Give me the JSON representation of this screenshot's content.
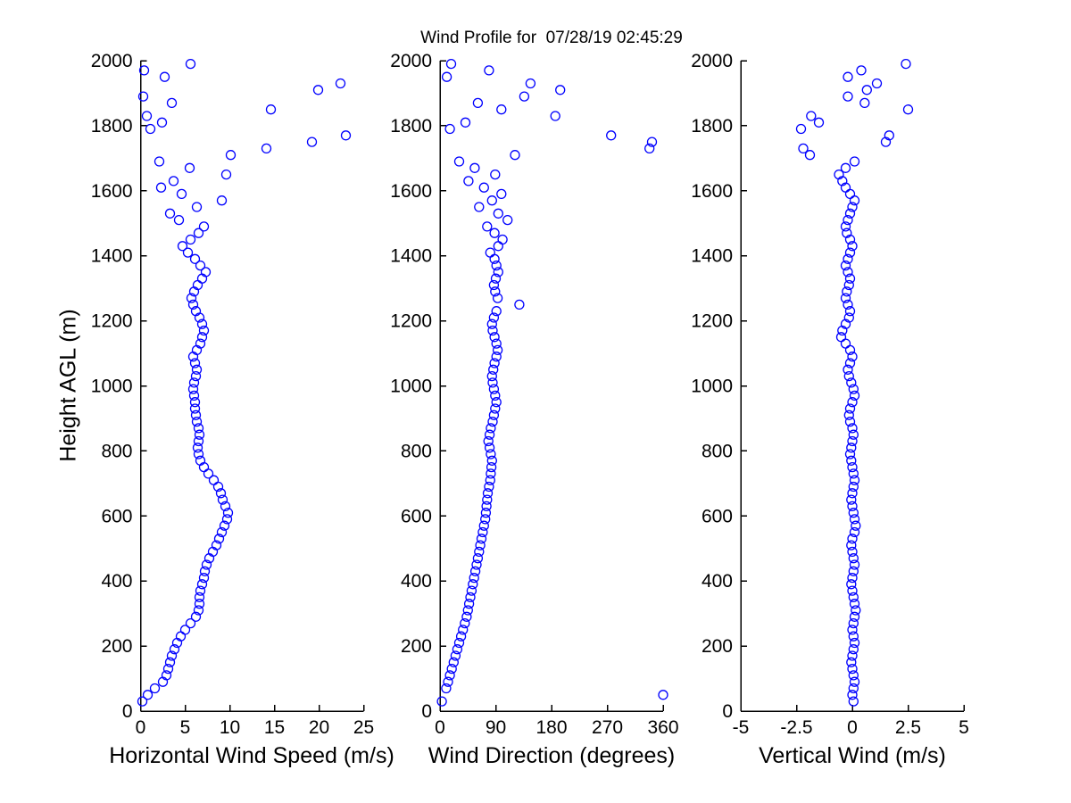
{
  "figure": {
    "title": "Wind Profile for  07/28/19 02:45:29",
    "background_color": "#ffffff"
  },
  "chart_data": {
    "type": "scatter",
    "title": "Wind Profile for  07/28/19 02:45:29",
    "grid": false,
    "legend": null,
    "axis_color": "#000000",
    "marker": {
      "shape": "open-circle",
      "color": "#0000ff",
      "radius_px": 5
    },
    "yaxis": {
      "label": "Height AGL (m)",
      "lim": [
        0,
        2000
      ],
      "ticks": [
        0,
        200,
        400,
        600,
        800,
        1000,
        1200,
        1400,
        1600,
        1800,
        2000
      ]
    },
    "heights_m": [
      30,
      50,
      70,
      90,
      110,
      130,
      150,
      170,
      190,
      210,
      230,
      250,
      270,
      290,
      310,
      330,
      350,
      370,
      390,
      410,
      430,
      450,
      470,
      490,
      510,
      530,
      550,
      570,
      590,
      610,
      630,
      650,
      670,
      690,
      710,
      730,
      750,
      770,
      790,
      810,
      830,
      850,
      870,
      890,
      910,
      930,
      950,
      970,
      990,
      1010,
      1030,
      1050,
      1070,
      1090,
      1110,
      1130,
      1150,
      1170,
      1190,
      1210,
      1230,
      1250,
      1270,
      1290,
      1310,
      1330,
      1350,
      1370,
      1390,
      1410,
      1430,
      1450,
      1470,
      1490,
      1510,
      1530,
      1550,
      1570,
      1590,
      1610,
      1630,
      1650,
      1670,
      1690,
      1710,
      1730,
      1750,
      1770,
      1790,
      1810,
      1830,
      1850,
      1870,
      1890,
      1910,
      1930,
      1950,
      1970,
      1990
    ],
    "subplots": [
      {
        "name": "horizontal-wind-speed",
        "xlabel": "Horizontal Wind Speed (m/s)",
        "xlim": [
          0,
          25
        ],
        "xticks": [
          0,
          5,
          10,
          15,
          20,
          25
        ],
        "values": [
          0.2,
          0.8,
          1.6,
          2.5,
          2.9,
          3.1,
          3.3,
          3.5,
          3.8,
          4.1,
          4.5,
          5.0,
          5.6,
          6.2,
          6.5,
          6.6,
          6.6,
          6.7,
          6.9,
          7.1,
          7.2,
          7.4,
          7.7,
          8.1,
          8.5,
          8.8,
          9.1,
          9.4,
          9.7,
          9.8,
          9.5,
          9.2,
          9.0,
          8.7,
          8.2,
          7.6,
          7.1,
          6.7,
          6.5,
          6.4,
          6.5,
          6.6,
          6.5,
          6.3,
          6.2,
          6.1,
          6.1,
          6.0,
          5.9,
          6.0,
          6.2,
          6.3,
          6.1,
          5.9,
          6.3,
          6.7,
          6.9,
          7.1,
          6.9,
          6.6,
          6.2,
          5.9,
          5.7,
          6.0,
          6.4,
          6.9,
          7.3,
          6.7,
          6.1,
          5.3,
          4.7,
          5.6,
          6.5,
          7.1,
          4.3,
          3.3,
          6.3,
          9.1,
          4.6,
          2.3,
          3.7,
          9.6,
          5.5,
          2.1,
          10.1,
          14.1,
          19.2,
          23.0,
          1.1,
          2.4,
          0.7,
          14.6,
          3.5,
          0.3,
          19.9,
          22.4,
          2.7,
          0.4,
          5.6
        ]
      },
      {
        "name": "wind-direction",
        "xlabel": "Wind Direction (degrees)",
        "xlim": [
          0,
          360
        ],
        "xticks": [
          0,
          90,
          180,
          270,
          360
        ],
        "values": [
          3,
          360,
          10,
          13,
          16,
          19,
          22,
          25,
          28,
          31,
          34,
          37,
          40,
          43,
          45,
          47,
          49,
          51,
          53,
          55,
          57,
          59,
          61,
          63,
          65,
          67,
          69,
          71,
          73,
          74,
          75,
          76,
          77,
          79,
          81,
          82,
          83,
          84,
          82,
          80,
          78,
          80,
          82,
          85,
          87,
          89,
          91,
          89,
          87,
          85,
          84,
          86,
          88,
          91,
          93,
          91,
          88,
          85,
          84,
          87,
          91,
          128,
          93,
          89,
          87,
          90,
          94,
          91,
          88,
          81,
          94,
          101,
          88,
          76,
          109,
          94,
          63,
          84,
          99,
          71,
          46,
          89,
          56,
          31,
          121,
          338,
          342,
          276,
          16,
          41,
          186,
          99,
          61,
          136,
          194,
          146,
          11,
          79,
          18
        ]
      },
      {
        "name": "vertical-wind",
        "xlabel": "Vertical Wind (m/s)",
        "xlim": [
          -5,
          5
        ],
        "xticks": [
          -5,
          -2.5,
          0,
          2.5,
          5
        ],
        "values": [
          0.05,
          0.0,
          0.05,
          0.1,
          0.05,
          0.0,
          -0.05,
          0.0,
          0.05,
          0.1,
          0.05,
          0.0,
          0.05,
          0.1,
          0.15,
          0.1,
          0.05,
          0.0,
          -0.05,
          0.0,
          0.05,
          0.1,
          0.05,
          0.0,
          -0.05,
          0.0,
          0.1,
          0.15,
          0.1,
          0.05,
          0.0,
          -0.05,
          0.0,
          0.05,
          0.1,
          0.05,
          0.0,
          -0.05,
          -0.1,
          -0.05,
          0.0,
          0.05,
          0.0,
          -0.1,
          -0.15,
          -0.1,
          0.0,
          0.1,
          0.05,
          -0.05,
          -0.15,
          -0.2,
          -0.1,
          0.0,
          -0.1,
          -0.3,
          -0.5,
          -0.45,
          -0.3,
          -0.15,
          -0.1,
          -0.2,
          -0.3,
          -0.25,
          -0.15,
          -0.1,
          -0.2,
          -0.3,
          -0.2,
          -0.1,
          0.0,
          -0.1,
          -0.25,
          -0.3,
          -0.2,
          -0.1,
          0.0,
          0.1,
          -0.1,
          -0.3,
          -0.45,
          -0.6,
          -0.3,
          0.1,
          -1.9,
          -2.2,
          1.5,
          1.65,
          -2.3,
          -1.5,
          -1.85,
          2.5,
          0.55,
          -0.2,
          0.65,
          1.1,
          -0.2,
          0.4,
          2.4
        ]
      }
    ]
  }
}
